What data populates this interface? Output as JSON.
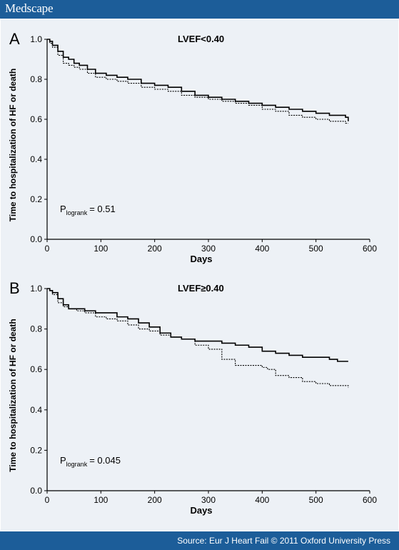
{
  "header": {
    "brand": "Medscape"
  },
  "footer": {
    "source": "Source: Eur J Heart Fail © 2011 Oxford University Press"
  },
  "colors": {
    "bar": "#1c5d99",
    "panel": "#edf1f6",
    "series": "#000000"
  },
  "chart_data": [
    {
      "type": "line",
      "panel_label": "A",
      "title": "LVEF<0.40",
      "xlabel": "Days",
      "ylabel": "Time to hospitalization of HF or death",
      "xlim": [
        0,
        600
      ],
      "ylim": [
        0,
        1.0
      ],
      "x_ticks": [
        0,
        100,
        200,
        300,
        400,
        500,
        600
      ],
      "y_ticks": [
        0.0,
        0.2,
        0.4,
        0.6,
        0.8,
        1.0
      ],
      "grid": false,
      "annotation": {
        "p_symbol": "P",
        "p_subscript": "logrank",
        "p_value": "= 0.51"
      },
      "series": [
        {
          "style": "solid",
          "x": [
            0,
            5,
            10,
            20,
            30,
            40,
            50,
            60,
            75,
            90,
            110,
            130,
            150,
            175,
            200,
            225,
            250,
            275,
            300,
            325,
            350,
            375,
            400,
            425,
            450,
            475,
            500,
            525,
            540,
            555,
            560
          ],
          "values": [
            1.0,
            0.99,
            0.97,
            0.94,
            0.91,
            0.9,
            0.88,
            0.87,
            0.85,
            0.83,
            0.82,
            0.81,
            0.8,
            0.78,
            0.77,
            0.76,
            0.74,
            0.72,
            0.71,
            0.7,
            0.69,
            0.68,
            0.67,
            0.66,
            0.65,
            0.64,
            0.63,
            0.62,
            0.62,
            0.61,
            0.59
          ]
        },
        {
          "style": "dashed",
          "x": [
            0,
            5,
            10,
            20,
            30,
            40,
            50,
            60,
            75,
            90,
            110,
            130,
            150,
            175,
            200,
            225,
            250,
            275,
            300,
            325,
            350,
            375,
            400,
            425,
            450,
            475,
            500,
            525,
            540,
            555,
            560
          ],
          "values": [
            1.0,
            0.98,
            0.96,
            0.92,
            0.88,
            0.87,
            0.86,
            0.85,
            0.83,
            0.81,
            0.8,
            0.79,
            0.78,
            0.76,
            0.75,
            0.74,
            0.72,
            0.71,
            0.7,
            0.69,
            0.68,
            0.67,
            0.65,
            0.64,
            0.62,
            0.61,
            0.6,
            0.59,
            0.59,
            0.58,
            0.58
          ]
        }
      ]
    },
    {
      "type": "line",
      "panel_label": "B",
      "title": "LVEF≥0.40",
      "xlabel": "Days",
      "ylabel": "Time to hospitalization of HF or death",
      "xlim": [
        0,
        600
      ],
      "ylim": [
        0,
        1.0
      ],
      "x_ticks": [
        0,
        100,
        200,
        300,
        400,
        500,
        600
      ],
      "y_ticks": [
        0.0,
        0.2,
        0.4,
        0.6,
        0.8,
        1.0
      ],
      "grid": false,
      "annotation": {
        "p_symbol": "P",
        "p_subscript": "logrank",
        "p_value": "= 0.045"
      },
      "series": [
        {
          "style": "solid",
          "x": [
            0,
            5,
            10,
            20,
            30,
            40,
            55,
            70,
            90,
            110,
            130,
            150,
            170,
            190,
            210,
            230,
            250,
            275,
            300,
            325,
            350,
            375,
            400,
            425,
            450,
            475,
            500,
            525,
            540,
            560
          ],
          "values": [
            1.0,
            0.99,
            0.98,
            0.95,
            0.92,
            0.9,
            0.9,
            0.89,
            0.88,
            0.88,
            0.86,
            0.85,
            0.83,
            0.81,
            0.78,
            0.76,
            0.75,
            0.74,
            0.74,
            0.73,
            0.72,
            0.71,
            0.69,
            0.68,
            0.67,
            0.66,
            0.66,
            0.65,
            0.64,
            0.64
          ]
        },
        {
          "style": "dashed",
          "x": [
            0,
            5,
            10,
            20,
            30,
            40,
            55,
            70,
            90,
            110,
            130,
            150,
            170,
            190,
            210,
            230,
            250,
            275,
            300,
            325,
            350,
            375,
            400,
            410,
            425,
            450,
            475,
            500,
            525,
            560
          ],
          "values": [
            1.0,
            0.99,
            0.97,
            0.93,
            0.91,
            0.9,
            0.89,
            0.88,
            0.86,
            0.85,
            0.84,
            0.82,
            0.8,
            0.79,
            0.77,
            0.76,
            0.75,
            0.72,
            0.7,
            0.65,
            0.62,
            0.62,
            0.61,
            0.6,
            0.57,
            0.56,
            0.54,
            0.53,
            0.52,
            0.51
          ]
        }
      ]
    }
  ]
}
